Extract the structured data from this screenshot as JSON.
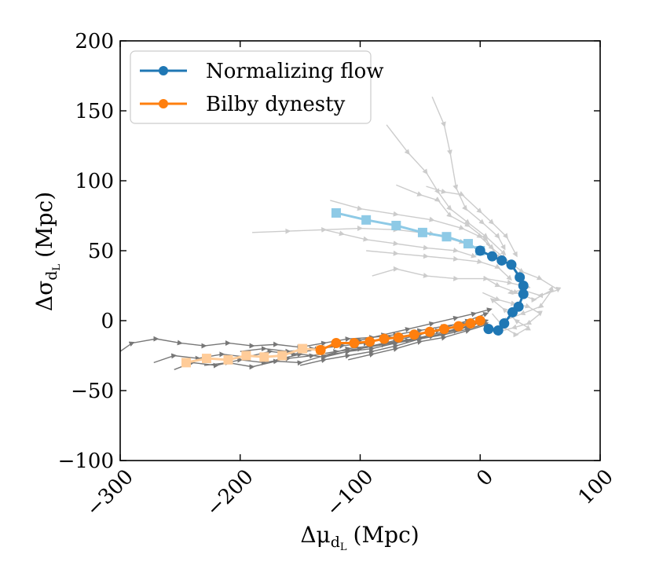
{
  "chart_data": {
    "type": "line",
    "title": "",
    "xlabel": "Δμ",
    "xlabel_sub": "d",
    "xlabel_subsub": "L",
    "xlabel_unit": "(Mpc)",
    "ylabel": "Δσ",
    "ylabel_sub": "d",
    "ylabel_subsub": "L",
    "ylabel_unit": "(Mpc)",
    "xlim": [
      -300,
      100
    ],
    "ylim": [
      -100,
      200
    ],
    "xticks": [
      -300,
      -200,
      -100,
      0,
      100
    ],
    "yticks": [
      -100,
      -50,
      0,
      50,
      100,
      150,
      200
    ],
    "xtick_labels": [
      "−300",
      "−200",
      "−100",
      "0",
      "100"
    ],
    "ytick_labels": [
      "−100",
      "−50",
      "0",
      "50",
      "100",
      "150",
      "200"
    ],
    "legend_position": "top-left",
    "grid": false,
    "series": [
      {
        "name": "Normalizing flow",
        "color": "#1f77b4",
        "light_color": "#8ecae6",
        "circles": [
          [
            0,
            50
          ],
          [
            10,
            46
          ],
          [
            18,
            43
          ],
          [
            26,
            40
          ],
          [
            33,
            31
          ],
          [
            36,
            25
          ],
          [
            36,
            19
          ],
          [
            32,
            10
          ],
          [
            27,
            6
          ],
          [
            20,
            -2
          ],
          [
            15,
            -7
          ],
          [
            7,
            -6
          ]
        ],
        "squares": [
          [
            -120,
            77
          ],
          [
            -95,
            72
          ],
          [
            -70,
            68
          ],
          [
            -48,
            63
          ],
          [
            -28,
            60
          ],
          [
            -10,
            55
          ],
          [
            0,
            50
          ]
        ]
      },
      {
        "name": "Bilby dynesty",
        "color": "#ff7f0e",
        "light_color": "#ffcc99",
        "circles": [
          [
            -133,
            -21
          ],
          [
            -120,
            -16
          ],
          [
            -105,
            -16
          ],
          [
            -92,
            -15
          ],
          [
            -80,
            -13
          ],
          [
            -68,
            -12
          ],
          [
            -55,
            -10
          ],
          [
            -42,
            -8
          ],
          [
            -30,
            -6
          ],
          [
            -18,
            -4
          ],
          [
            -8,
            -2
          ],
          [
            0,
            0
          ]
        ],
        "squares": [
          [
            -245,
            -30
          ],
          [
            -228,
            -27
          ],
          [
            -210,
            -28
          ],
          [
            -195,
            -25
          ],
          [
            -180,
            -26
          ],
          [
            -165,
            -25
          ],
          [
            -148,
            -20
          ],
          [
            -133,
            -21
          ]
        ]
      }
    ],
    "background_trajectories": {
      "normalizing_flow_group": {
        "color": "#cccccc",
        "paths": [
          [
            [
              -125,
              86
            ],
            [
              -100,
              80
            ],
            [
              -70,
              76
            ],
            [
              -40,
              72
            ],
            [
              -15,
              66
            ],
            [
              0,
              60
            ],
            [
              10,
              52
            ]
          ],
          [
            [
              -190,
              63
            ],
            [
              -160,
              64
            ],
            [
              -130,
              65
            ],
            [
              -100,
              66
            ],
            [
              -70,
              65
            ],
            [
              -40,
              62
            ],
            [
              -15,
              56
            ],
            [
              0,
              50
            ]
          ],
          [
            [
              -70,
              97
            ],
            [
              -50,
              90
            ],
            [
              -35,
              86
            ],
            [
              -25,
              75
            ],
            [
              -10,
              68
            ],
            [
              5,
              58
            ],
            [
              15,
              45
            ]
          ],
          [
            [
              -95,
              50
            ],
            [
              -70,
              48
            ],
            [
              -45,
              46
            ],
            [
              -20,
              44
            ],
            [
              0,
              42
            ],
            [
              15,
              38
            ],
            [
              25,
              30
            ]
          ],
          [
            [
              -90,
              32
            ],
            [
              -70,
              37
            ],
            [
              -45,
              32
            ],
            [
              -20,
              30
            ],
            [
              5,
              30
            ],
            [
              25,
              27
            ],
            [
              40,
              24
            ]
          ],
          [
            [
              -78,
              140
            ],
            [
              -60,
              120
            ],
            [
              -45,
              106
            ],
            [
              -35,
              92
            ],
            [
              -25,
              80
            ],
            [
              -10,
              70
            ],
            [
              5,
              60
            ],
            [
              20,
              48
            ]
          ],
          [
            [
              -40,
              160
            ],
            [
              -30,
              140
            ],
            [
              -25,
              120
            ],
            [
              -20,
              95
            ],
            [
              -12,
              80
            ],
            [
              2,
              70
            ],
            [
              15,
              60
            ],
            [
              20,
              52
            ]
          ],
          [
            [
              -45,
              96
            ],
            [
              -30,
              92
            ],
            [
              -15,
              90
            ],
            [
              0,
              78
            ],
            [
              10,
              70
            ],
            [
              22,
              60
            ],
            [
              30,
              47
            ]
          ],
          [
            [
              -130,
              65
            ],
            [
              -115,
              62
            ],
            [
              -95,
              58
            ],
            [
              -70,
              55
            ],
            [
              -45,
              52
            ],
            [
              -20,
              50
            ],
            [
              -5,
              46
            ]
          ],
          [
            [
              5,
              55
            ],
            [
              20,
              45
            ],
            [
              35,
              35
            ],
            [
              50,
              30
            ],
            [
              65,
              22
            ],
            [
              50,
              18
            ],
            [
              35,
              22
            ],
            [
              25,
              20
            ]
          ],
          [
            [
              5,
              30
            ],
            [
              15,
              25
            ],
            [
              30,
              20
            ],
            [
              45,
              15
            ],
            [
              60,
              22
            ],
            [
              50,
              10
            ],
            [
              35,
              5
            ],
            [
              20,
              0
            ]
          ],
          [
            [
              2,
              20
            ],
            [
              15,
              15
            ],
            [
              28,
              12
            ],
            [
              40,
              10
            ],
            [
              50,
              5
            ],
            [
              40,
              -2
            ],
            [
              28,
              -5
            ],
            [
              15,
              -8
            ]
          ],
          [
            [
              10,
              5
            ],
            [
              20,
              -5
            ],
            [
              30,
              -10
            ],
            [
              40,
              -5
            ],
            [
              30,
              0
            ],
            [
              20,
              8
            ],
            [
              10,
              15
            ]
          ]
        ]
      },
      "bilby_group": {
        "color": "#777777",
        "paths": [
          [
            [
              -300,
              -22
            ],
            [
              -290,
              -16
            ],
            [
              -270,
              -13
            ],
            [
              -250,
              -16
            ],
            [
              -230,
              -18
            ],
            [
              -210,
              -16
            ],
            [
              -190,
              -18
            ],
            [
              -170,
              -17
            ],
            [
              -150,
              -19
            ],
            [
              -130,
              -16
            ],
            [
              -110,
              -13
            ],
            [
              -90,
              -12
            ],
            [
              -70,
              -10
            ],
            [
              -50,
              -7
            ],
            [
              -30,
              -4
            ],
            [
              -15,
              -2
            ],
            [
              0,
              0
            ]
          ],
          [
            [
              -272,
              -30
            ],
            [
              -255,
              -25
            ],
            [
              -235,
              -27
            ],
            [
              -215,
              -24
            ],
            [
              -195,
              -26
            ],
            [
              -175,
              -22
            ],
            [
              -155,
              -24
            ],
            [
              -135,
              -20
            ],
            [
              -115,
              -18
            ],
            [
              -95,
              -16
            ],
            [
              -75,
              -12
            ],
            [
              -55,
              -10
            ],
            [
              -35,
              -7
            ],
            [
              -15,
              -3
            ],
            [
              0,
              0
            ]
          ],
          [
            [
              -255,
              -35
            ],
            [
              -240,
              -30
            ],
            [
              -220,
              -32
            ],
            [
              -200,
              -28
            ],
            [
              -180,
              -30
            ],
            [
              -160,
              -27
            ],
            [
              -140,
              -25
            ],
            [
              -120,
              -22
            ],
            [
              -100,
              -20
            ],
            [
              -80,
              -17
            ],
            [
              -60,
              -14
            ],
            [
              -40,
              -11
            ],
            [
              -20,
              -7
            ],
            [
              -5,
              -3
            ]
          ],
          [
            [
              -230,
              -32
            ],
            [
              -210,
              -30
            ],
            [
              -190,
              -33
            ],
            [
              -170,
              -29
            ],
            [
              -150,
              -30
            ],
            [
              -130,
              -25
            ],
            [
              -110,
              -22
            ],
            [
              -90,
              -20
            ],
            [
              -70,
              -16
            ],
            [
              -50,
              -13
            ],
            [
              -30,
              -9
            ],
            [
              -15,
              -5
            ],
            [
              2,
              0
            ]
          ],
          [
            [
              -200,
              -22
            ],
            [
              -180,
              -20
            ],
            [
              -160,
              -22
            ],
            [
              -140,
              -20
            ],
            [
              -120,
              -18
            ],
            [
              -100,
              -14
            ],
            [
              -80,
              -10
            ],
            [
              -60,
              -6
            ],
            [
              -40,
              -2
            ],
            [
              -20,
              2
            ],
            [
              -5,
              5
            ],
            [
              8,
              8
            ]
          ],
          [
            [
              -170,
              -28
            ],
            [
              -150,
              -24
            ],
            [
              -130,
              -26
            ],
            [
              -110,
              -22
            ],
            [
              -90,
              -18
            ],
            [
              -70,
              -15
            ],
            [
              -50,
              -12
            ],
            [
              -30,
              -8
            ],
            [
              -10,
              -4
            ],
            [
              5,
              0
            ]
          ],
          [
            [
              -150,
              -32
            ],
            [
              -130,
              -28
            ],
            [
              -110,
              -25
            ],
            [
              -90,
              -22
            ],
            [
              -70,
              -18
            ],
            [
              -50,
              -13
            ],
            [
              -30,
              -10
            ],
            [
              -10,
              -6
            ],
            [
              5,
              -2
            ]
          ],
          [
            [
              -130,
              -25
            ],
            [
              -110,
              -20
            ],
            [
              -90,
              -18
            ],
            [
              -70,
              -14
            ],
            [
              -50,
              -10
            ],
            [
              -30,
              -5
            ],
            [
              -10,
              0
            ],
            [
              5,
              5
            ]
          ],
          [
            [
              -110,
              -28
            ],
            [
              -90,
              -24
            ],
            [
              -70,
              -20
            ],
            [
              -50,
              -15
            ],
            [
              -30,
              -12
            ],
            [
              -10,
              -7
            ],
            [
              5,
              -3
            ]
          ]
        ]
      }
    }
  }
}
